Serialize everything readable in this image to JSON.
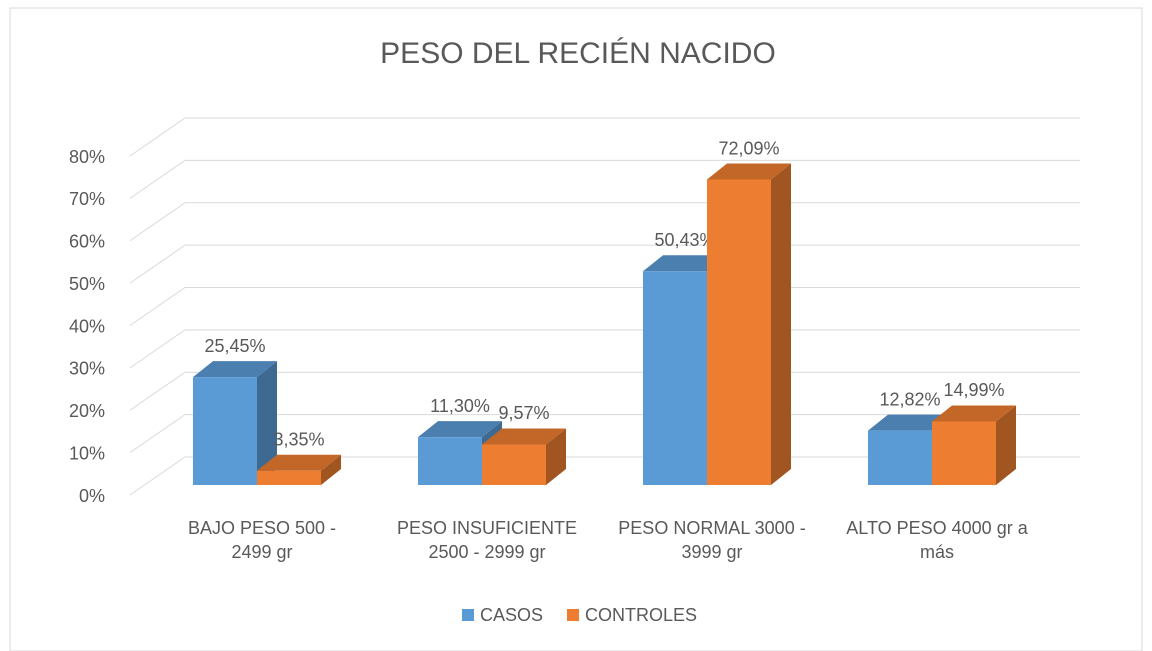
{
  "chart_data": {
    "type": "bar3d",
    "title": "PESO DEL RECIÉN NACIDO",
    "categories": [
      "BAJO PESO 500 - 2499 gr",
      "PESO INSUFICIENTE 2500 - 2999 gr",
      "PESO NORMAL 3000 - 3999 gr",
      "ALTO PESO 4000 gr a más"
    ],
    "series": [
      {
        "name": "CASOS",
        "color": "#5b9bd5",
        "values": [
          25.45,
          11.3,
          50.43,
          12.82
        ],
        "value_labels": [
          "25,45%",
          "11,30%",
          "50,43%",
          "12,82%"
        ]
      },
      {
        "name": "CONTROLES",
        "color": "#ed7d31",
        "values": [
          3.35,
          9.57,
          72.09,
          14.99
        ],
        "value_labels": [
          "3,35%",
          "9,57%",
          "72,09%",
          "14,99%"
        ]
      }
    ],
    "ylim": [
      0,
      80
    ],
    "yticks": [
      {
        "value": 0,
        "label": "0%"
      },
      {
        "value": 10,
        "label": "10%"
      },
      {
        "value": 20,
        "label": "20%"
      },
      {
        "value": 30,
        "label": "30%"
      },
      {
        "value": 40,
        "label": "40%"
      },
      {
        "value": 50,
        "label": "50%"
      },
      {
        "value": 60,
        "label": "60%"
      },
      {
        "value": 70,
        "label": "70%"
      },
      {
        "value": 80,
        "label": "80%"
      }
    ],
    "grid": true,
    "legend": "bottom"
  }
}
